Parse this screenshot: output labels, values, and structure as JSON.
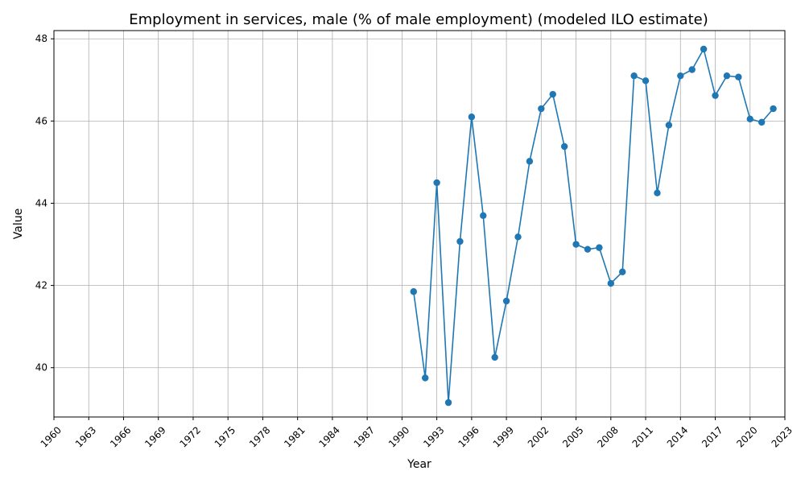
{
  "chart_data": {
    "type": "line",
    "title": "Employment in services, male (% of male employment) (modeled ILO estimate)",
    "xlabel": "Year",
    "ylabel": "Value",
    "xlim": [
      1960,
      2023
    ],
    "ylim": [
      38.8,
      48.2
    ],
    "x_ticks": [
      "1960",
      "1963",
      "1966",
      "1969",
      "1972",
      "1975",
      "1978",
      "1981",
      "1984",
      "1987",
      "1990",
      "1993",
      "1996",
      "1999",
      "2002",
      "2005",
      "2008",
      "2011",
      "2014",
      "2017",
      "2020",
      "2023"
    ],
    "y_ticks": [
      "40",
      "42",
      "44",
      "46",
      "48"
    ],
    "grid": true,
    "marker": "circle",
    "color": "#1f77b4",
    "series": [
      {
        "x": [
          1991,
          1992,
          1993,
          1994,
          1995,
          1996,
          1997,
          1998,
          1999,
          2000,
          2001,
          2002,
          2003,
          2004,
          2005,
          2006,
          2007,
          2008,
          2009,
          2010,
          2011,
          2012,
          2013,
          2014,
          2015,
          2016,
          2017,
          2018,
          2019,
          2020,
          2021,
          2022
        ],
        "values": [
          41.85,
          39.75,
          44.5,
          39.15,
          43.07,
          46.1,
          43.7,
          40.25,
          41.62,
          43.18,
          45.02,
          46.3,
          46.65,
          45.38,
          43.0,
          42.88,
          42.92,
          42.05,
          42.33,
          47.1,
          46.98,
          44.25,
          45.9,
          47.1,
          47.25,
          47.75,
          46.62,
          47.1,
          47.07,
          46.05,
          45.97,
          46.3
        ]
      }
    ]
  }
}
